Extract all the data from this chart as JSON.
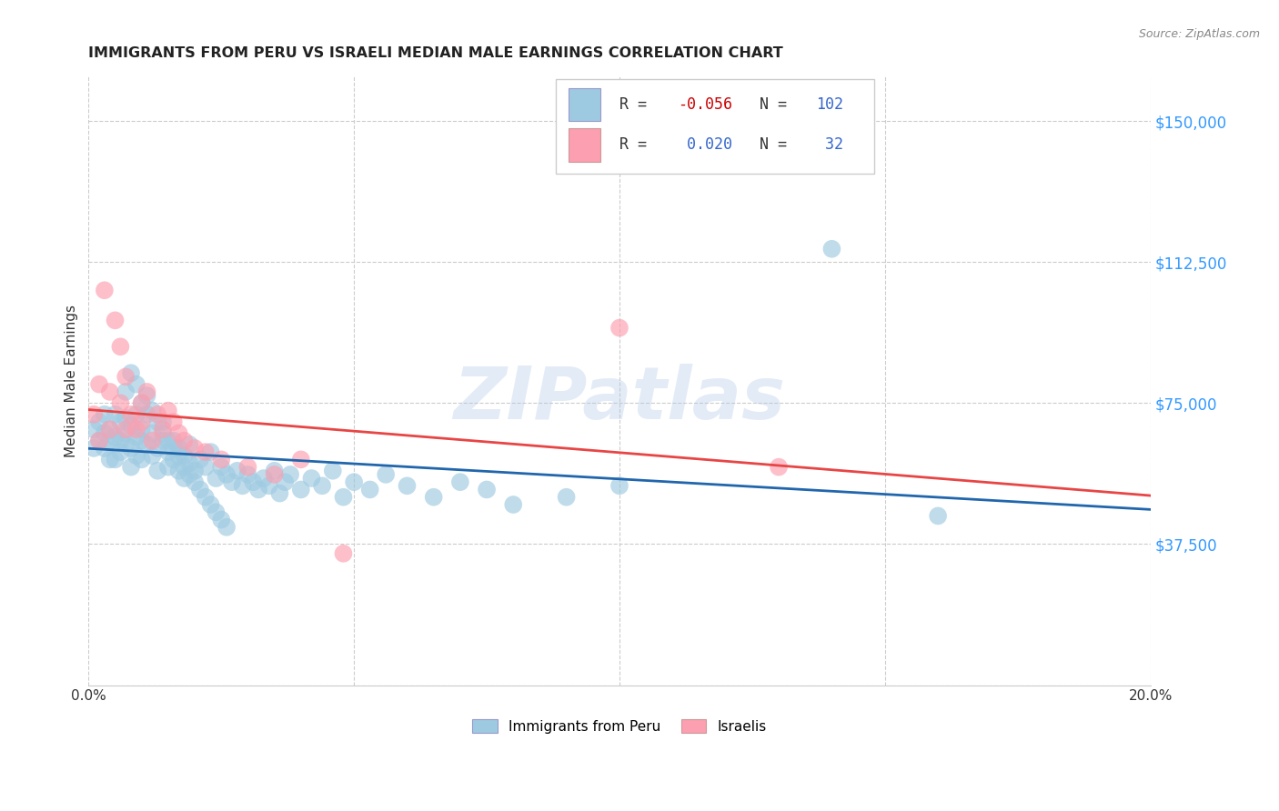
{
  "title": "IMMIGRANTS FROM PERU VS ISRAELI MEDIAN MALE EARNINGS CORRELATION CHART",
  "source": "Source: ZipAtlas.com",
  "ylabel": "Median Male Earnings",
  "xlim": [
    0.0,
    0.2
  ],
  "ylim": [
    0,
    162000
  ],
  "yticks": [
    0,
    37500,
    75000,
    112500,
    150000
  ],
  "ytick_labels": [
    "",
    "$37,500",
    "$75,000",
    "$112,500",
    "$150,000"
  ],
  "xticks": [
    0.0,
    0.05,
    0.1,
    0.15,
    0.2
  ],
  "xtick_labels": [
    "0.0%",
    "",
    "",
    "",
    "20.0%"
  ],
  "legend_label1": "Immigrants from Peru",
  "legend_label2": "Israelis",
  "R1": -0.056,
  "N1": 102,
  "R2": 0.02,
  "N2": 32,
  "color_blue": "#9ecae1",
  "color_pink": "#fc9fb0",
  "trend_color_blue": "#2166ac",
  "trend_color_pink": "#e84545",
  "watermark": "ZIPatlas",
  "blue_x": [
    0.001,
    0.001,
    0.002,
    0.002,
    0.003,
    0.003,
    0.003,
    0.004,
    0.004,
    0.004,
    0.005,
    0.005,
    0.005,
    0.006,
    0.006,
    0.006,
    0.007,
    0.007,
    0.007,
    0.008,
    0.008,
    0.008,
    0.009,
    0.009,
    0.009,
    0.01,
    0.01,
    0.01,
    0.011,
    0.011,
    0.012,
    0.012,
    0.013,
    0.013,
    0.014,
    0.014,
    0.015,
    0.015,
    0.016,
    0.016,
    0.017,
    0.017,
    0.018,
    0.018,
    0.019,
    0.019,
    0.02,
    0.021,
    0.022,
    0.023,
    0.024,
    0.025,
    0.026,
    0.027,
    0.028,
    0.029,
    0.03,
    0.031,
    0.032,
    0.033,
    0.034,
    0.035,
    0.036,
    0.037,
    0.038,
    0.04,
    0.042,
    0.044,
    0.046,
    0.048,
    0.05,
    0.053,
    0.056,
    0.06,
    0.065,
    0.07,
    0.075,
    0.08,
    0.09,
    0.1,
    0.007,
    0.008,
    0.009,
    0.01,
    0.011,
    0.012,
    0.013,
    0.014,
    0.015,
    0.016,
    0.017,
    0.018,
    0.019,
    0.02,
    0.021,
    0.022,
    0.023,
    0.024,
    0.025,
    0.026,
    0.14,
    0.16
  ],
  "blue_y": [
    63000,
    68000,
    65000,
    70000,
    67000,
    72000,
    63000,
    68000,
    65000,
    60000,
    66000,
    72000,
    60000,
    65000,
    70000,
    62000,
    67000,
    64000,
    71000,
    63000,
    69000,
    58000,
    66000,
    72000,
    61000,
    65000,
    60000,
    68000,
    64000,
    72000,
    61000,
    67000,
    63000,
    57000,
    65000,
    70000,
    62000,
    58000,
    65000,
    60000,
    63000,
    57000,
    61000,
    55000,
    59000,
    64000,
    57000,
    60000,
    58000,
    62000,
    55000,
    58000,
    56000,
    54000,
    57000,
    53000,
    56000,
    54000,
    52000,
    55000,
    53000,
    57000,
    51000,
    54000,
    56000,
    52000,
    55000,
    53000,
    57000,
    50000,
    54000,
    52000,
    56000,
    53000,
    50000,
    54000,
    52000,
    48000,
    50000,
    53000,
    78000,
    83000,
    80000,
    75000,
    77000,
    73000,
    70000,
    67000,
    65000,
    63000,
    61000,
    58000,
    56000,
    54000,
    52000,
    50000,
    48000,
    46000,
    44000,
    42000,
    116000,
    45000
  ],
  "pink_x": [
    0.001,
    0.002,
    0.002,
    0.003,
    0.004,
    0.004,
    0.005,
    0.006,
    0.006,
    0.007,
    0.007,
    0.008,
    0.009,
    0.01,
    0.01,
    0.011,
    0.012,
    0.013,
    0.014,
    0.015,
    0.016,
    0.017,
    0.018,
    0.02,
    0.022,
    0.025,
    0.03,
    0.035,
    0.04,
    0.048,
    0.1,
    0.13
  ],
  "pink_y": [
    72000,
    65000,
    80000,
    105000,
    68000,
    78000,
    97000,
    90000,
    75000,
    82000,
    68000,
    72000,
    68000,
    75000,
    70000,
    78000,
    65000,
    72000,
    68000,
    73000,
    70000,
    67000,
    65000,
    63000,
    62000,
    60000,
    58000,
    56000,
    60000,
    35000,
    95000,
    58000
  ]
}
